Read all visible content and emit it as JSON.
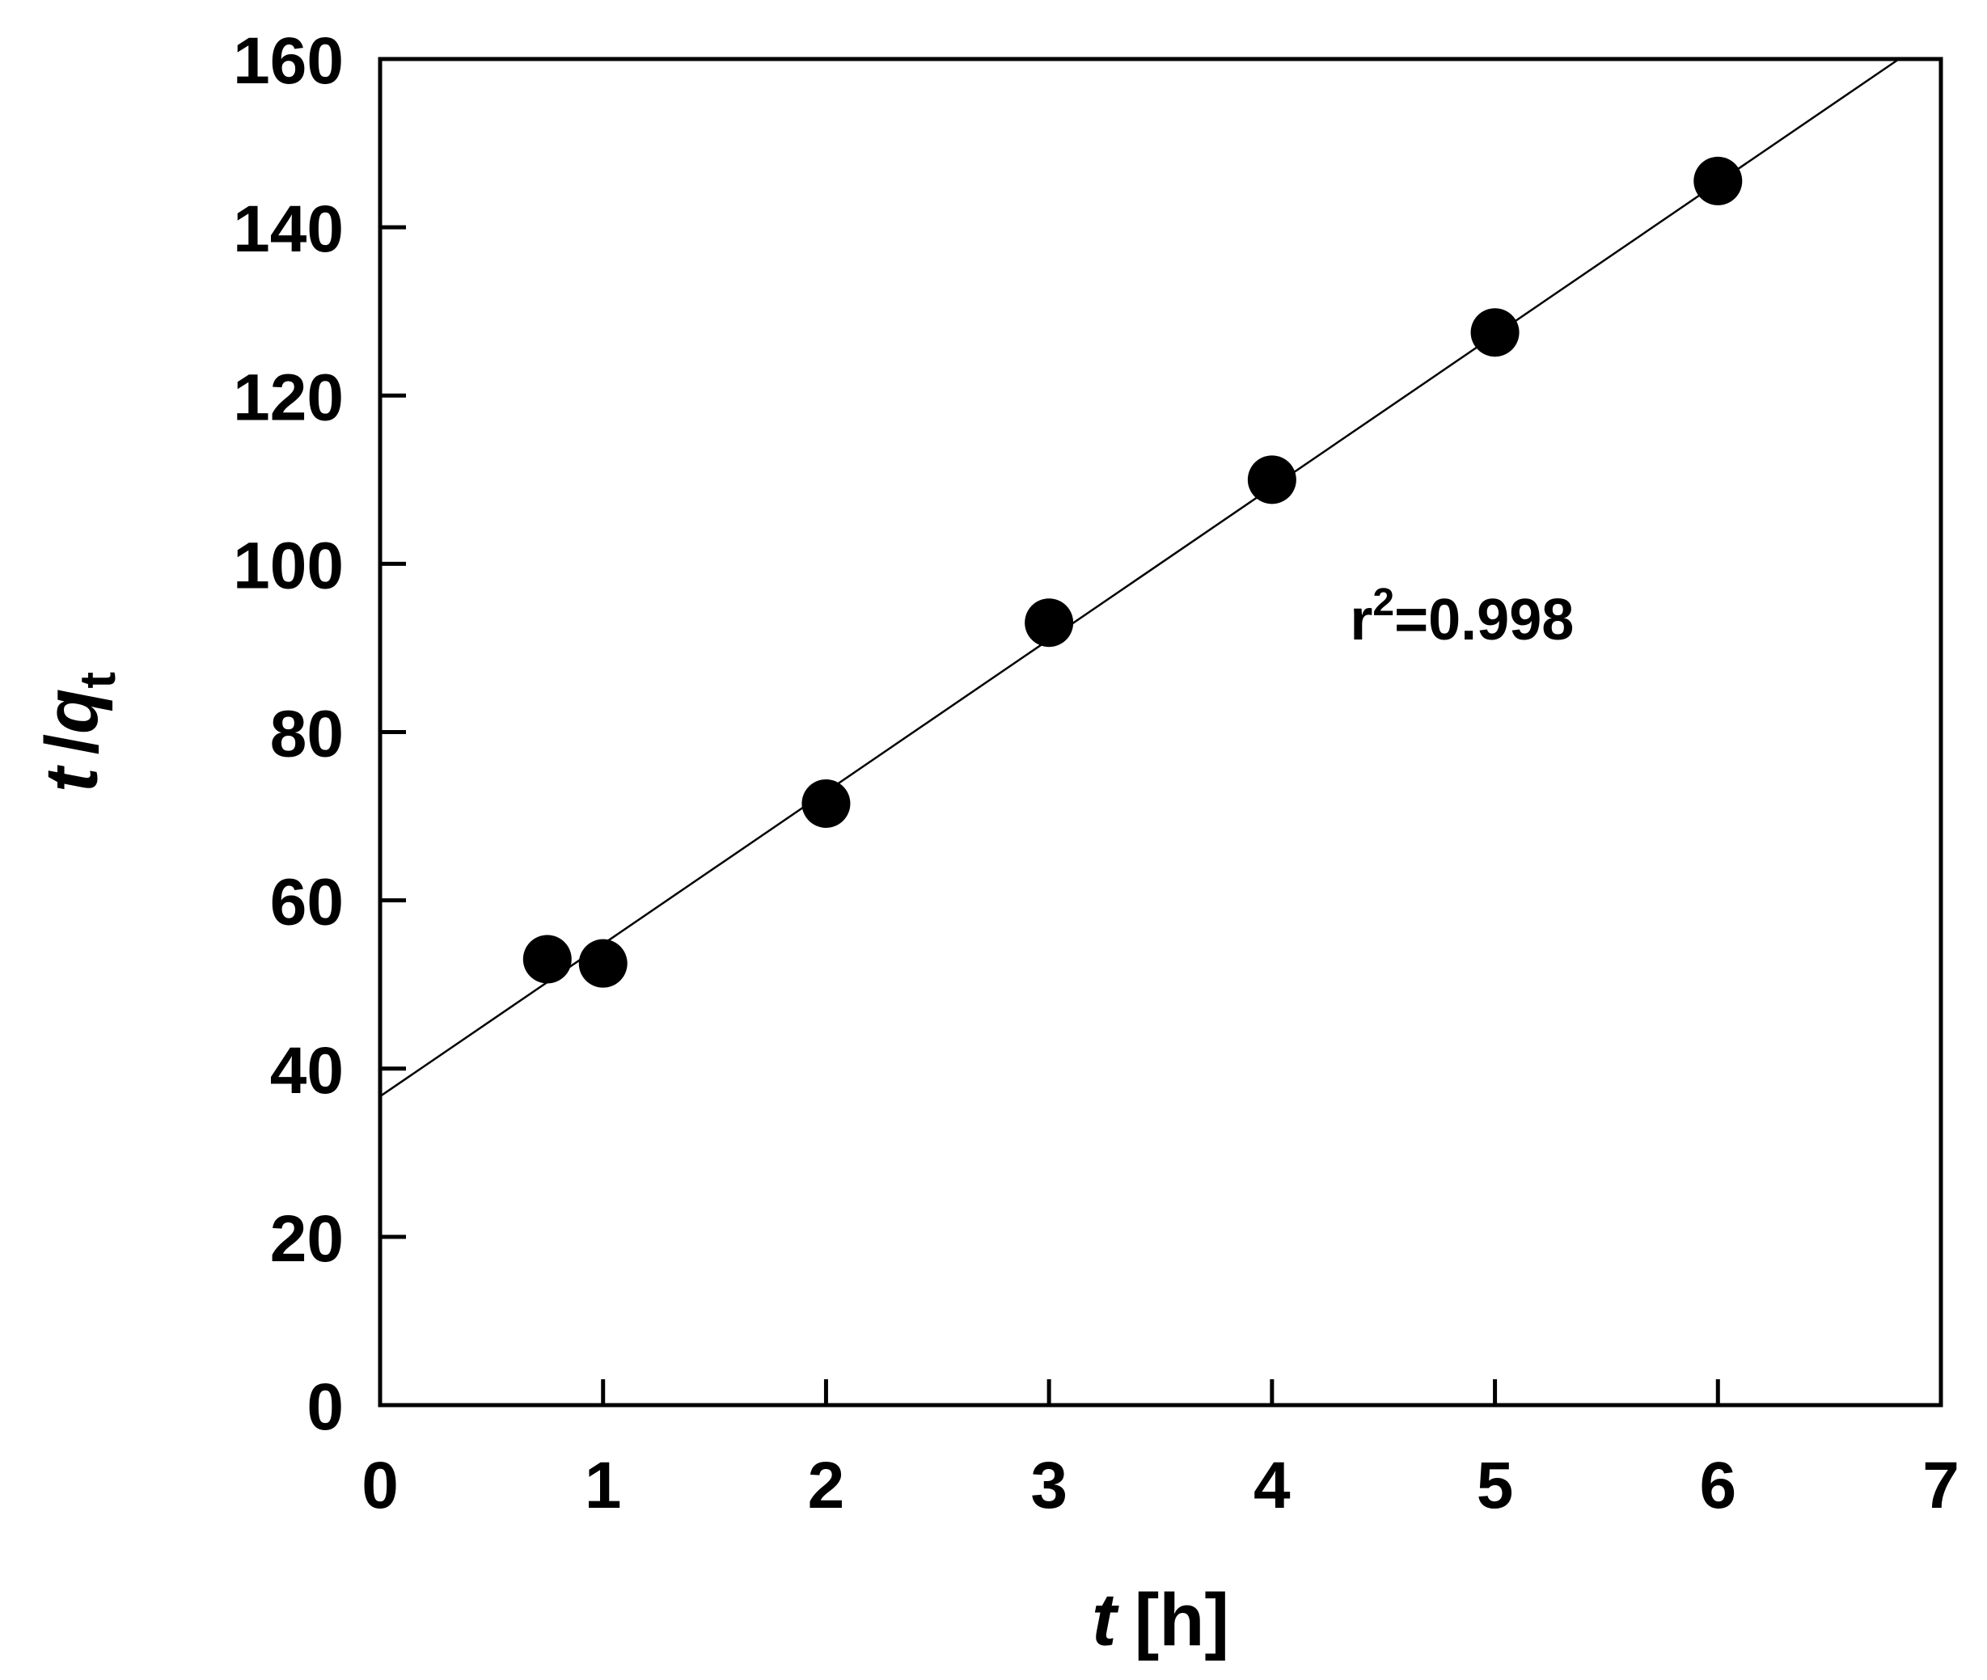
{
  "chart_data": {
    "type": "scatter",
    "title": "",
    "xlabel": {
      "var": "t",
      "unit": "[h]"
    },
    "ylabel": {
      "var_t": "t",
      "slash": "/",
      "var_q": "q",
      "sub": "t"
    },
    "xlim": [
      0,
      7
    ],
    "ylim": [
      0,
      160
    ],
    "xticks": [
      0,
      1,
      2,
      3,
      4,
      5,
      6,
      7
    ],
    "yticks": [
      0,
      20,
      40,
      60,
      80,
      100,
      120,
      140,
      160
    ],
    "grid": false,
    "legend": "none",
    "series": [
      {
        "x": [
          0.75,
          1,
          2,
          3,
          4,
          5,
          6
        ],
        "y": [
          53,
          52.5,
          71.5,
          93,
          110,
          127.5,
          145.5
        ],
        "marker": "filled-circle",
        "color": "#000000"
      }
    ],
    "fit_line": {
      "slope": 18.1,
      "intercept": 36.7,
      "color": "#000000"
    },
    "annotation": {
      "base": "r",
      "sup": "2",
      "rest": "=0.998"
    }
  }
}
